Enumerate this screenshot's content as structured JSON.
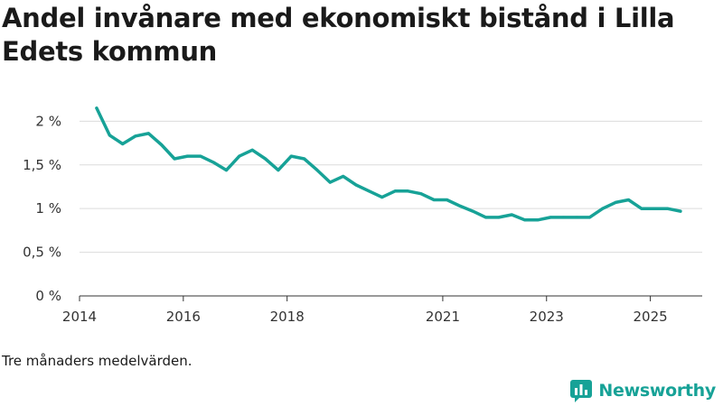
{
  "chart_data": {
    "type": "line",
    "title": "Andel invånare med ekonomiskt bistånd i Lilla Edets kommun",
    "xlabel": "",
    "ylabel": "",
    "xlim": [
      2014.0,
      2026.0
    ],
    "ylim": [
      0,
      2.2
    ],
    "x_ticks": [
      {
        "value": 2014,
        "label": "2014"
      },
      {
        "value": 2016,
        "label": "2016"
      },
      {
        "value": 2018,
        "label": "2018"
      },
      {
        "value": 2021,
        "label": "2021"
      },
      {
        "value": 2023,
        "label": "2023"
      },
      {
        "value": 2025,
        "label": "2025"
      }
    ],
    "y_ticks": [
      {
        "value": 0,
        "label": "0 %"
      },
      {
        "value": 0.5,
        "label": "0,5 %"
      },
      {
        "value": 1,
        "label": "1 %"
      },
      {
        "value": 1.5,
        "label": "1,5 %"
      },
      {
        "value": 2,
        "label": "2 %"
      }
    ],
    "series": [
      {
        "name": "Andel invånare med ekonomiskt bistånd",
        "color": "#17a297",
        "x": [
          2014.33,
          2014.58,
          2014.83,
          2015.08,
          2015.33,
          2015.58,
          2015.83,
          2016.08,
          2016.33,
          2016.58,
          2016.83,
          2017.08,
          2017.33,
          2017.58,
          2017.83,
          2018.08,
          2018.33,
          2018.58,
          2018.83,
          2019.08,
          2019.33,
          2019.58,
          2019.83,
          2020.08,
          2020.33,
          2020.58,
          2020.83,
          2021.08,
          2021.33,
          2021.58,
          2021.83,
          2022.08,
          2022.33,
          2022.58,
          2022.83,
          2023.08,
          2023.33,
          2023.58,
          2023.83,
          2024.08,
          2024.33,
          2024.58,
          2024.83,
          2025.08,
          2025.33,
          2025.58
        ],
        "values": [
          2.15,
          1.84,
          1.74,
          1.83,
          1.86,
          1.73,
          1.57,
          1.6,
          1.6,
          1.53,
          1.44,
          1.6,
          1.67,
          1.57,
          1.44,
          1.6,
          1.57,
          1.44,
          1.3,
          1.37,
          1.27,
          1.2,
          1.13,
          1.2,
          1.2,
          1.17,
          1.1,
          1.1,
          1.03,
          0.97,
          0.9,
          0.9,
          0.93,
          0.87,
          0.87,
          0.9,
          0.9,
          0.9,
          0.9,
          1.0,
          1.07,
          1.1,
          1.0,
          1.0,
          1.0,
          0.97
        ]
      }
    ]
  },
  "footnote": "Tre månaders medelvärden.",
  "brand": {
    "name": "Newsworthy",
    "icon": "newsworthy-logo-icon",
    "color": "#17a297"
  }
}
